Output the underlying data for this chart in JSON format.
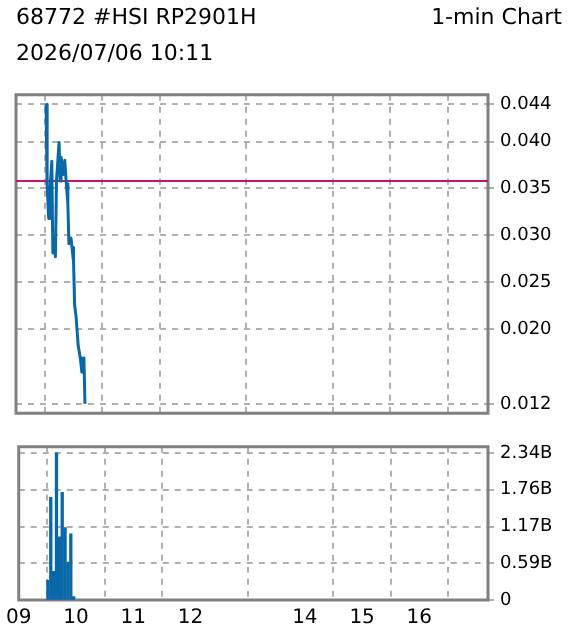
{
  "chart_data": [
    {
      "type": "line",
      "title": "68772 #HSI  RP2901H",
      "subtitle": "1-min Chart",
      "annotations": [
        "2026/07/06 10:11"
      ],
      "x": [
        9.522,
        9.541,
        9.568,
        9.586,
        9.622,
        9.64,
        9.667,
        9.685,
        9.703,
        9.748,
        9.766,
        9.784,
        9.82,
        9.847,
        9.874,
        9.901,
        9.919,
        9.955,
        9.973,
        10.0,
        10.018,
        10.045,
        10.081,
        10.117,
        10.144,
        10.18,
        10.198
      ],
      "series": [
        {
          "color": "#0a68a8",
          "values": [
            0.044,
            0.0352,
            0.0318,
            0.0345,
            0.0379,
            0.0281,
            0.0297,
            0.0277,
            0.0358,
            0.0399,
            0.0358,
            0.0383,
            0.0365,
            0.038,
            0.0355,
            0.0334,
            0.0291,
            0.0297,
            0.0287,
            0.0271,
            0.0226,
            0.0212,
            0.0182,
            0.0169,
            0.0154,
            0.0169,
            0.012
          ]
        }
      ],
      "xlim": [
        9,
        17.2
      ],
      "xticks": [
        {
          "value": 9,
          "label": null
        },
        {
          "value": 10,
          "label": null
        },
        {
          "value": 11,
          "label": null
        },
        {
          "value": 12,
          "label": null
        },
        {
          "value": 14,
          "label": null
        },
        {
          "value": 15,
          "label": null
        },
        {
          "value": 16,
          "label": null
        }
      ],
      "ylim": [
        0.011,
        0.045
      ],
      "yticks": [
        {
          "value": 0.012,
          "label": "0.012"
        },
        {
          "value": 0.02,
          "label": "0.020"
        },
        {
          "value": 0.025,
          "label": "0.025"
        },
        {
          "value": 0.03,
          "label": "0.030"
        },
        {
          "value": 0.035,
          "label": "0.035"
        },
        {
          "value": 0.04,
          "label": "0.040"
        },
        {
          "value": 0.044,
          "label": "0.044"
        }
      ],
      "ref_lines": [
        {
          "axis": "y",
          "value": 0.0358,
          "color": "#d01070"
        }
      ],
      "grid": true,
      "legend": false,
      "marker": "none",
      "tick_labels": "y"
    },
    {
      "type": "bar",
      "x": [
        9.51,
        9.56,
        9.61,
        9.66,
        9.71,
        9.76,
        9.81,
        9.86,
        9.91,
        9.96
      ],
      "series": [
        {
          "color": "#0a68a8",
          "values": [
            0.31,
            1.63,
            0.45,
            2.34,
            1.0,
            1.71,
            1.15,
            0.6,
            1.05,
            0.05
          ]
        }
      ],
      "xlim": [
        9,
        17.2
      ],
      "xticks": [
        {
          "value": 9,
          "label": "09"
        },
        10,
        11,
        12,
        14,
        15,
        16
      ],
      "ylim": [
        0,
        2.44
      ],
      "yticks": [
        0,
        {
          "value": 0.585,
          "label": "0.59B"
        },
        {
          "value": 1.17,
          "label": "1.17B"
        },
        {
          "value": 1.755,
          "label": "1.76B"
        },
        {
          "value": 2.34,
          "label": "2.34B"
        }
      ],
      "grid": true,
      "legend": false
    }
  ]
}
